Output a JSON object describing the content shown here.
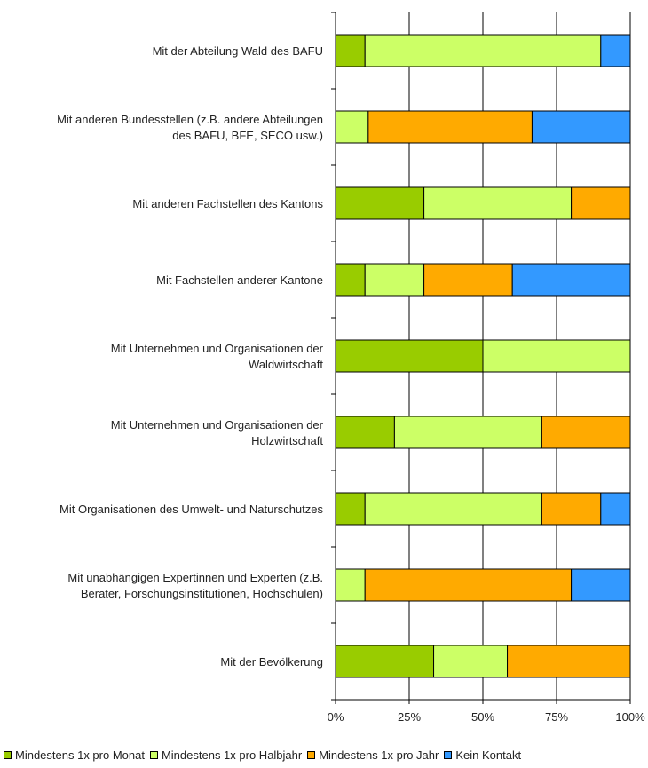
{
  "chart_data": {
    "type": "bar",
    "orientation": "horizontal",
    "stacked": true,
    "title": "",
    "xlabel": "",
    "ylabel": "",
    "xlim": [
      0,
      100
    ],
    "x_ticks": [
      "0%",
      "25%",
      "50%",
      "75%",
      "100%"
    ],
    "grid": "vertical",
    "legend_position": "bottom",
    "categories": [
      [
        "Mit der Abteilung Wald des BAFU"
      ],
      [
        "Mit anderen Bundesstellen (z.B. andere Abteilungen",
        "des BAFU, BFE, SECO usw.)"
      ],
      [
        "Mit anderen Fachstellen des Kantons"
      ],
      [
        "Mit Fachstellen anderer Kantone"
      ],
      [
        "Mit Unternehmen und Organisationen der",
        "Waldwirtschaft"
      ],
      [
        "Mit Unternehmen und Organisationen der",
        "Holzwirtschaft"
      ],
      [
        "Mit Organisationen des Umwelt- und Naturschutzes"
      ],
      [
        "Mit unabhängigen Expertinnen und Experten (z.B.",
        "Berater, Forschungsinstitutionen, Hochschulen)"
      ],
      [
        "Mit der Bevölkerung"
      ]
    ],
    "series": [
      {
        "name": "Mindestens 1x pro Monat",
        "color": "#99cc00",
        "values": [
          10,
          0,
          30,
          10,
          50,
          20,
          10,
          0,
          33.3
        ]
      },
      {
        "name": "Mindestens 1x pro Halbjahr",
        "color": "#ccff66",
        "values": [
          80,
          11.1,
          50,
          20,
          50,
          50,
          60,
          10,
          25
        ]
      },
      {
        "name": "Mindestens 1x pro Jahr",
        "color": "#ffaa00",
        "values": [
          0,
          55.6,
          20,
          30,
          0,
          30,
          20,
          70,
          41.7
        ]
      },
      {
        "name": "Kein Kontakt",
        "color": "#3399ff",
        "values": [
          10,
          33.3,
          0,
          40,
          0,
          0,
          10,
          20,
          0
        ]
      }
    ]
  }
}
